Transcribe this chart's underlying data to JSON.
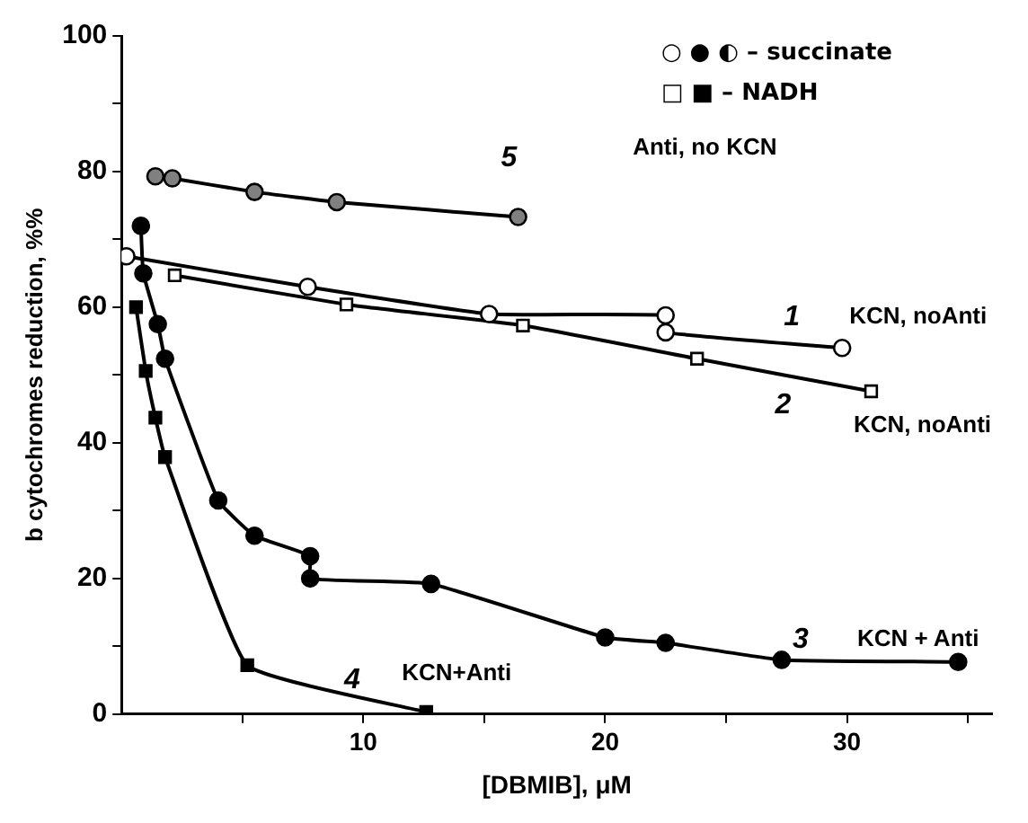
{
  "chart_data": {
    "type": "line",
    "xlabel": "[DBMIB], μM",
    "ylabel": "b cytochromes reduction, %%",
    "xlim": [
      0,
      36
    ],
    "ylim": [
      0,
      100
    ],
    "xticks": [
      {
        "value": 5,
        "label": null
      },
      10,
      {
        "value": 15,
        "label": null
      },
      20,
      {
        "value": 25,
        "label": null
      },
      30,
      {
        "value": 35,
        "label": null
      }
    ],
    "yticks": [
      0,
      {
        "value": 10,
        "label": null
      },
      20,
      {
        "value": 30,
        "label": null
      },
      40,
      {
        "value": 50,
        "label": null
      },
      60,
      {
        "value": 70,
        "label": null
      },
      80,
      {
        "value": 90,
        "label": null
      },
      100
    ],
    "grid": false,
    "legend": false,
    "line_style": "solid",
    "series": [
      {
        "color": "#000000",
        "marker": "circle",
        "x": [
          1.4,
          2.1,
          5.5,
          8.9,
          16.4
        ],
        "values": [
          79.3,
          79,
          77,
          75.5,
          73.3
        ]
      },
      {
        "color": "#000000",
        "marker": "circle",
        "x": [
          0.2,
          7.7,
          15.2,
          22.5,
          22.5,
          29.8
        ],
        "values": [
          67.5,
          63,
          59,
          58.8,
          56.3,
          54
        ]
      },
      {
        "color": "#000000",
        "marker": "square",
        "x": [
          2.2,
          9.3,
          16.6,
          23.8,
          31
        ],
        "values": [
          64.7,
          60.4,
          57.3,
          52.4,
          47.6
        ]
      },
      {
        "color": "#000000",
        "marker": "circle",
        "x": [
          0.8,
          0.9,
          1.5,
          1.8,
          4,
          5.5,
          7.8,
          7.8,
          12.8,
          20,
          22.5,
          27.3,
          34.6
        ],
        "values": [
          72,
          65,
          57.5,
          52.4,
          31.5,
          26.3,
          23.3,
          20,
          19.2,
          11.3,
          10.5,
          8,
          7.7
        ]
      },
      {
        "color": "#000000",
        "marker": "square",
        "x": [
          0.6,
          1,
          1.4,
          1.8,
          5.2,
          12.6
        ],
        "values": [
          60,
          50.6,
          43.7,
          37.9,
          7.2,
          0.3
        ]
      }
    ],
    "annotations": [
      "○ ● ◐ – succinate",
      "□ ■ – NADH",
      "5",
      "Anti, no KCN",
      "1",
      "KCN, noAnti",
      "2",
      "KCN, noAnti",
      "3",
      "KCN + Anti",
      "4",
      "KCN+Anti"
    ]
  }
}
